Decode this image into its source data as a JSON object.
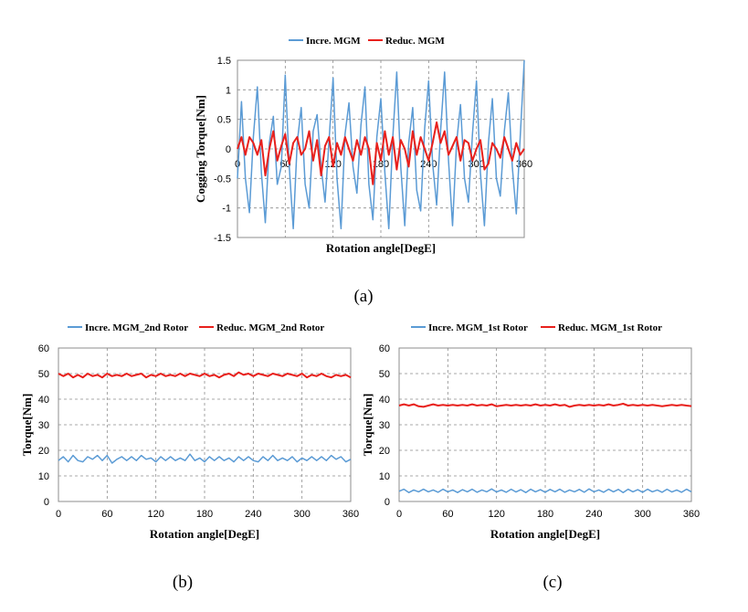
{
  "chart_data": [
    {
      "type": "line",
      "panel_label": "(a)",
      "xlabel": "Rotation angle[DegE]",
      "ylabel": "Cogging Torque[Nm]",
      "xlim": [
        0,
        360
      ],
      "ylim": [
        -1.5,
        1.5
      ],
      "xticks": [
        0,
        60,
        120,
        180,
        240,
        300,
        360
      ],
      "yticks": [
        -1.5,
        -1,
        -0.5,
        0,
        0.5,
        1,
        1.5
      ],
      "ytick_labels": [
        "-1.5",
        "-1",
        "-0.5",
        "0",
        "0.5",
        "1",
        "1.5"
      ],
      "grid": "dashed",
      "legend": "top",
      "series": [
        {
          "name": "Incre. MGM",
          "color": "#5b9bd5",
          "x": [
            0,
            5,
            10,
            15,
            20,
            25,
            30,
            35,
            40,
            45,
            50,
            55,
            60,
            65,
            70,
            75,
            80,
            85,
            90,
            95,
            100,
            105,
            110,
            115,
            120,
            125,
            130,
            135,
            140,
            145,
            150,
            155,
            160,
            165,
            170,
            175,
            180,
            185,
            190,
            195,
            200,
            205,
            210,
            215,
            220,
            225,
            230,
            235,
            240,
            245,
            250,
            255,
            260,
            265,
            270,
            275,
            280,
            285,
            290,
            295,
            300,
            305,
            310,
            315,
            320,
            325,
            330,
            335,
            340,
            345,
            350,
            355,
            360
          ],
          "values": [
            -0.5,
            0.8,
            -0.5,
            -1.08,
            0.2,
            1.05,
            -0.4,
            -1.25,
            0.1,
            0.55,
            -0.6,
            -0.3,
            1.25,
            -0.3,
            -1.35,
            0.1,
            0.7,
            -0.6,
            -1.0,
            0.3,
            0.58,
            -0.3,
            -0.9,
            0.15,
            1.2,
            -0.5,
            -1.35,
            0.25,
            0.78,
            -0.3,
            -0.75,
            0.4,
            1.05,
            -0.6,
            -1.2,
            0.2,
            0.85,
            -0.4,
            -1.35,
            0.2,
            1.3,
            -0.3,
            -1.3,
            0.1,
            0.7,
            -0.7,
            -1.05,
            0.35,
            1.15,
            -0.25,
            -0.95,
            0.3,
            1.3,
            -0.2,
            -1.3,
            0.1,
            0.75,
            -0.5,
            -0.9,
            0.25,
            1.15,
            -0.4,
            -1.3,
            0.1,
            0.85,
            -0.5,
            -0.8,
            0.3,
            0.95,
            -0.3,
            -1.1,
            0.2,
            1.5
          ]
        },
        {
          "name": "Reduc. MGM",
          "color": "#e8201c",
          "x": [
            0,
            5,
            10,
            15,
            20,
            25,
            30,
            35,
            40,
            45,
            50,
            55,
            60,
            65,
            70,
            75,
            80,
            85,
            90,
            95,
            100,
            105,
            110,
            115,
            120,
            125,
            130,
            135,
            140,
            145,
            150,
            155,
            160,
            165,
            170,
            175,
            180,
            185,
            190,
            195,
            200,
            205,
            210,
            215,
            220,
            225,
            230,
            235,
            240,
            245,
            250,
            255,
            260,
            265,
            270,
            275,
            280,
            285,
            290,
            295,
            300,
            305,
            310,
            315,
            320,
            325,
            330,
            335,
            340,
            345,
            350,
            355,
            360
          ],
          "values": [
            0.0,
            0.2,
            -0.1,
            0.2,
            0.1,
            -0.1,
            0.15,
            -0.45,
            0.0,
            0.3,
            -0.2,
            0.05,
            0.25,
            -0.25,
            0.1,
            0.2,
            -0.1,
            0.0,
            0.3,
            -0.2,
            0.15,
            -0.45,
            0.05,
            0.2,
            -0.3,
            0.1,
            -0.1,
            0.2,
            0.0,
            -0.2,
            0.15,
            -0.1,
            0.2,
            0.0,
            -0.6,
            0.1,
            -0.2,
            0.3,
            -0.1,
            0.2,
            -0.35,
            0.15,
            0.0,
            -0.3,
            0.3,
            -0.1,
            0.2,
            0.0,
            -0.2,
            0.1,
            0.45,
            0.1,
            0.3,
            -0.1,
            0.05,
            0.2,
            -0.2,
            0.15,
            0.1,
            -0.2,
            0.0,
            0.15,
            -0.35,
            -0.25,
            0.1,
            0.0,
            -0.15,
            0.2,
            0.0,
            -0.2,
            0.1,
            -0.1,
            0.0
          ]
        }
      ]
    },
    {
      "type": "line",
      "panel_label": "(b)",
      "xlabel": "Rotation angle[DegE]",
      "ylabel": "Torque[Nm]",
      "xlim": [
        0,
        360
      ],
      "ylim": [
        0,
        60
      ],
      "xticks": [
        0,
        60,
        120,
        180,
        240,
        300,
        360
      ],
      "yticks": [
        0,
        10,
        20,
        30,
        40,
        50,
        60
      ],
      "ytick_labels": [
        "0",
        "10",
        "20",
        "30",
        "40",
        "50",
        "60"
      ],
      "grid": "dashed",
      "legend": "top",
      "series": [
        {
          "name": "Incre. MGM_2nd Rotor",
          "color": "#5b9bd5",
          "x": [
            0,
            6,
            12,
            18,
            24,
            30,
            36,
            42,
            48,
            54,
            60,
            66,
            72,
            78,
            84,
            90,
            96,
            102,
            108,
            114,
            120,
            126,
            132,
            138,
            144,
            150,
            156,
            162,
            168,
            174,
            180,
            186,
            192,
            198,
            204,
            210,
            216,
            222,
            228,
            234,
            240,
            246,
            252,
            258,
            264,
            270,
            276,
            282,
            288,
            294,
            300,
            306,
            312,
            318,
            324,
            330,
            336,
            342,
            348,
            354,
            360
          ],
          "values": [
            16,
            17.5,
            15.5,
            18,
            16,
            15.5,
            17.5,
            16.5,
            18,
            16,
            18,
            15,
            16.5,
            17.5,
            16,
            17.5,
            16,
            18,
            16.5,
            17,
            15.5,
            17.5,
            16,
            17.5,
            16,
            17,
            16,
            18.5,
            16,
            17,
            15.5,
            17.5,
            16,
            17.5,
            16,
            17,
            15.5,
            17.5,
            16,
            17.5,
            16,
            15.5,
            17.5,
            16,
            18,
            16,
            17,
            16,
            17.5,
            15.5,
            17,
            16,
            17.5,
            16,
            17.5,
            16,
            18,
            16.5,
            17.5,
            15.5,
            16.5
          ]
        },
        {
          "name": "Reduc. MGM_2nd Rotor",
          "color": "#e8201c",
          "x": [
            0,
            6,
            12,
            18,
            24,
            30,
            36,
            42,
            48,
            54,
            60,
            66,
            72,
            78,
            84,
            90,
            96,
            102,
            108,
            114,
            120,
            126,
            132,
            138,
            144,
            150,
            156,
            162,
            168,
            174,
            180,
            186,
            192,
            198,
            204,
            210,
            216,
            222,
            228,
            234,
            240,
            246,
            252,
            258,
            264,
            270,
            276,
            282,
            288,
            294,
            300,
            306,
            312,
            318,
            324,
            330,
            336,
            342,
            348,
            354,
            360
          ],
          "values": [
            50,
            49,
            50,
            48.5,
            49.5,
            48.5,
            50,
            49,
            49.5,
            48.5,
            50,
            49,
            49.5,
            49,
            50,
            49,
            49.5,
            50,
            48.5,
            49.5,
            49,
            50,
            49,
            49.5,
            49,
            50,
            49,
            50,
            49.5,
            49,
            50,
            49,
            49.5,
            48.5,
            49.5,
            50,
            49,
            50.5,
            49.5,
            50,
            49,
            50,
            49.5,
            49,
            50,
            49.5,
            49,
            50,
            49.5,
            49,
            50,
            48.5,
            49.5,
            49,
            50,
            49,
            48.5,
            49.5,
            49,
            49.5,
            48.5
          ]
        }
      ]
    },
    {
      "type": "line",
      "panel_label": "(c)",
      "xlabel": "Rotation angle[DegE]",
      "ylabel": "Torque[Nm]",
      "xlim": [
        0,
        360
      ],
      "ylim": [
        0,
        60
      ],
      "xticks": [
        0,
        60,
        120,
        180,
        240,
        300,
        360
      ],
      "yticks": [
        0,
        10,
        20,
        30,
        40,
        50,
        60
      ],
      "ytick_labels": [
        "0",
        "10",
        "20",
        "30",
        "40",
        "50",
        "60"
      ],
      "grid": "dashed",
      "legend": "top",
      "series": [
        {
          "name": "Incre. MGM_1st Rotor",
          "color": "#5b9bd5",
          "x": [
            0,
            6,
            12,
            18,
            24,
            30,
            36,
            42,
            48,
            54,
            60,
            66,
            72,
            78,
            84,
            90,
            96,
            102,
            108,
            114,
            120,
            126,
            132,
            138,
            144,
            150,
            156,
            162,
            168,
            174,
            180,
            186,
            192,
            198,
            204,
            210,
            216,
            222,
            228,
            234,
            240,
            246,
            252,
            258,
            264,
            270,
            276,
            282,
            288,
            294,
            300,
            306,
            312,
            318,
            324,
            330,
            336,
            342,
            348,
            354,
            360
          ],
          "values": [
            4,
            4.8,
            3.5,
            4.5,
            3.8,
            4.8,
            3.8,
            4.5,
            3.6,
            4.8,
            3.8,
            4.5,
            3.5,
            4.6,
            3.8,
            4.8,
            3.6,
            4.5,
            3.8,
            4.9,
            3.7,
            4.5,
            3.6,
            4.8,
            3.7,
            4.6,
            3.5,
            4.8,
            3.8,
            4.6,
            3.6,
            4.7,
            3.8,
            4.8,
            3.6,
            4.5,
            3.8,
            4.7,
            3.6,
            4.9,
            3.8,
            4.5,
            3.6,
            4.8,
            3.8,
            4.7,
            3.5,
            4.8,
            3.8,
            4.6,
            3.6,
            4.8,
            3.8,
            4.5,
            3.6,
            4.8,
            3.7,
            4.5,
            3.6,
            4.8,
            3.8
          ]
        },
        {
          "name": "Reduc. MGM_1st Rotor",
          "color": "#e8201c",
          "x": [
            0,
            6,
            12,
            18,
            24,
            30,
            36,
            42,
            48,
            54,
            60,
            66,
            72,
            78,
            84,
            90,
            96,
            102,
            108,
            114,
            120,
            126,
            132,
            138,
            144,
            150,
            156,
            162,
            168,
            174,
            180,
            186,
            192,
            198,
            204,
            210,
            216,
            222,
            228,
            234,
            240,
            246,
            252,
            258,
            264,
            270,
            276,
            282,
            288,
            294,
            300,
            306,
            312,
            318,
            324,
            330,
            336,
            342,
            348,
            354,
            360
          ],
          "values": [
            37.5,
            38,
            37.5,
            38,
            37.2,
            37,
            37.5,
            38,
            37.5,
            37.8,
            37.5,
            37.8,
            37.5,
            37.8,
            37.5,
            38,
            37.5,
            37.8,
            37.5,
            38,
            37.2,
            37.5,
            37.8,
            37.5,
            37.8,
            37.5,
            37.8,
            37.5,
            38,
            37.5,
            37.8,
            37.5,
            38,
            37.5,
            37.8,
            37,
            37.5,
            37.8,
            37.5,
            37.8,
            37.5,
            37.8,
            37.5,
            38,
            37.5,
            37.8,
            38.2,
            37.5,
            37.8,
            37.5,
            37.8,
            37.5,
            37.8,
            37.5,
            37.2,
            37.5,
            37.8,
            37.5,
            37.8,
            37.5,
            37.3
          ]
        }
      ]
    }
  ]
}
